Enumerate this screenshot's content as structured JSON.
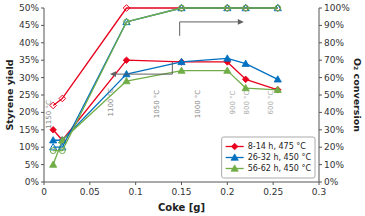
{
  "chart_data": {
    "type": "line",
    "xlabel": "Coke [g]",
    "ylabel": "Styrene yield",
    "y2label": "O₂ conversion",
    "x": [
      0.01,
      0.02,
      0.09,
      0.15,
      0.2,
      0.22,
      0.255
    ],
    "xlim": [
      0,
      0.3
    ],
    "xticks": [
      0,
      0.05,
      0.1,
      0.15,
      0.2,
      0.25,
      0.3
    ],
    "ylim": [
      0,
      0.5
    ],
    "yticks": [
      {
        "value": 0.0,
        "label": "0%"
      },
      {
        "value": 0.05,
        "label": "5%"
      },
      {
        "value": 0.1,
        "label": "10%"
      },
      {
        "value": 0.15,
        "label": "15%"
      },
      {
        "value": 0.2,
        "label": "20%"
      },
      {
        "value": 0.25,
        "label": "25%"
      },
      {
        "value": 0.3,
        "label": "30%"
      },
      {
        "value": 0.35,
        "label": "35%"
      },
      {
        "value": 0.4,
        "label": "40%"
      },
      {
        "value": 0.45,
        "label": "45%"
      },
      {
        "value": 0.5,
        "label": "50%"
      }
    ],
    "y2lim": [
      0,
      1.0
    ],
    "y2ticks": [
      {
        "value": 0.0,
        "label": "0%"
      },
      {
        "value": 0.1,
        "label": "10%"
      },
      {
        "value": 0.2,
        "label": "20%"
      },
      {
        "value": 0.3,
        "label": "30%"
      },
      {
        "value": 0.4,
        "label": "40%"
      },
      {
        "value": 0.5,
        "label": "50%"
      },
      {
        "value": 0.6,
        "label": "60%"
      },
      {
        "value": 0.7,
        "label": "70%"
      },
      {
        "value": 0.8,
        "label": "80%"
      },
      {
        "value": 0.9,
        "label": "90%"
      },
      {
        "value": 1.0,
        "label": "100%"
      }
    ],
    "legend": "lower right",
    "series": [
      {
        "name": "8-14 h, 475 °C",
        "color": "#e8001c",
        "marker": "diamond",
        "values": [
          0.15,
          0.12,
          0.35,
          0.345,
          0.345,
          0.295,
          0.265
        ]
      },
      {
        "name": "26-32 h, 450 °C",
        "color": "#0070c0",
        "marker": "triangle",
        "values": [
          0.12,
          0.12,
          0.31,
          0.345,
          0.355,
          0.34,
          0.295
        ]
      },
      {
        "name": "56-62 h, 450 °C",
        "color": "#70ad47",
        "marker": "triangle",
        "values": [
          0.05,
          0.12,
          0.29,
          0.32,
          0.32,
          0.27,
          0.265
        ]
      },
      {
        "color": "#e8001c",
        "marker": "open-diamond",
        "axis": "y2",
        "values": [
          0.44,
          0.48,
          1.0,
          1.0,
          1.0,
          1.0,
          1.0
        ]
      },
      {
        "color": "#0070c0",
        "marker": "open-triangle",
        "axis": "y2",
        "values": [
          0.2,
          0.2,
          0.92,
          1.0,
          1.0,
          1.0,
          1.0
        ]
      },
      {
        "color": "#70ad47",
        "marker": "open-circle",
        "axis": "y2",
        "values": [
          0.18,
          0.18,
          0.92,
          1.0,
          1.0,
          1.0,
          1.0
        ]
      }
    ],
    "annotations": [
      {
        "text": "1150 °C",
        "x": 0.006,
        "y": 0.235,
        "color": "#888888"
      },
      {
        "text": "1100 °C",
        "x": 0.073,
        "y": 0.27,
        "color": "#888888"
      },
      {
        "text": "1050 °C",
        "x": 0.123,
        "y": 0.265,
        "color": "#888888"
      },
      {
        "text": "1000 °C",
        "x": 0.168,
        "y": 0.265,
        "color": "#888888"
      },
      {
        "text": "900 °C",
        "x": 0.206,
        "y": 0.263,
        "color": "#aaaaaa"
      },
      {
        "text": "800 °C",
        "x": 0.221,
        "y": 0.263,
        "color": "#aaaaaa"
      },
      {
        "text": "600 °C",
        "x": 0.248,
        "y": 0.263,
        "color": "#aaaaaa"
      }
    ],
    "arrows": [
      {
        "x": [
          0.148,
          0.218
        ],
        "y": 0.46,
        "bracket_x": 0.148,
        "bracket_y": [
          0.42,
          0.46
        ],
        "color": "#606060"
      },
      {
        "x": [
          0.14,
          0.072
        ],
        "y": 0.31,
        "bracket_x": 0.14,
        "bracket_y": [
          0.31,
          0.345
        ],
        "color": "#606060"
      }
    ]
  }
}
